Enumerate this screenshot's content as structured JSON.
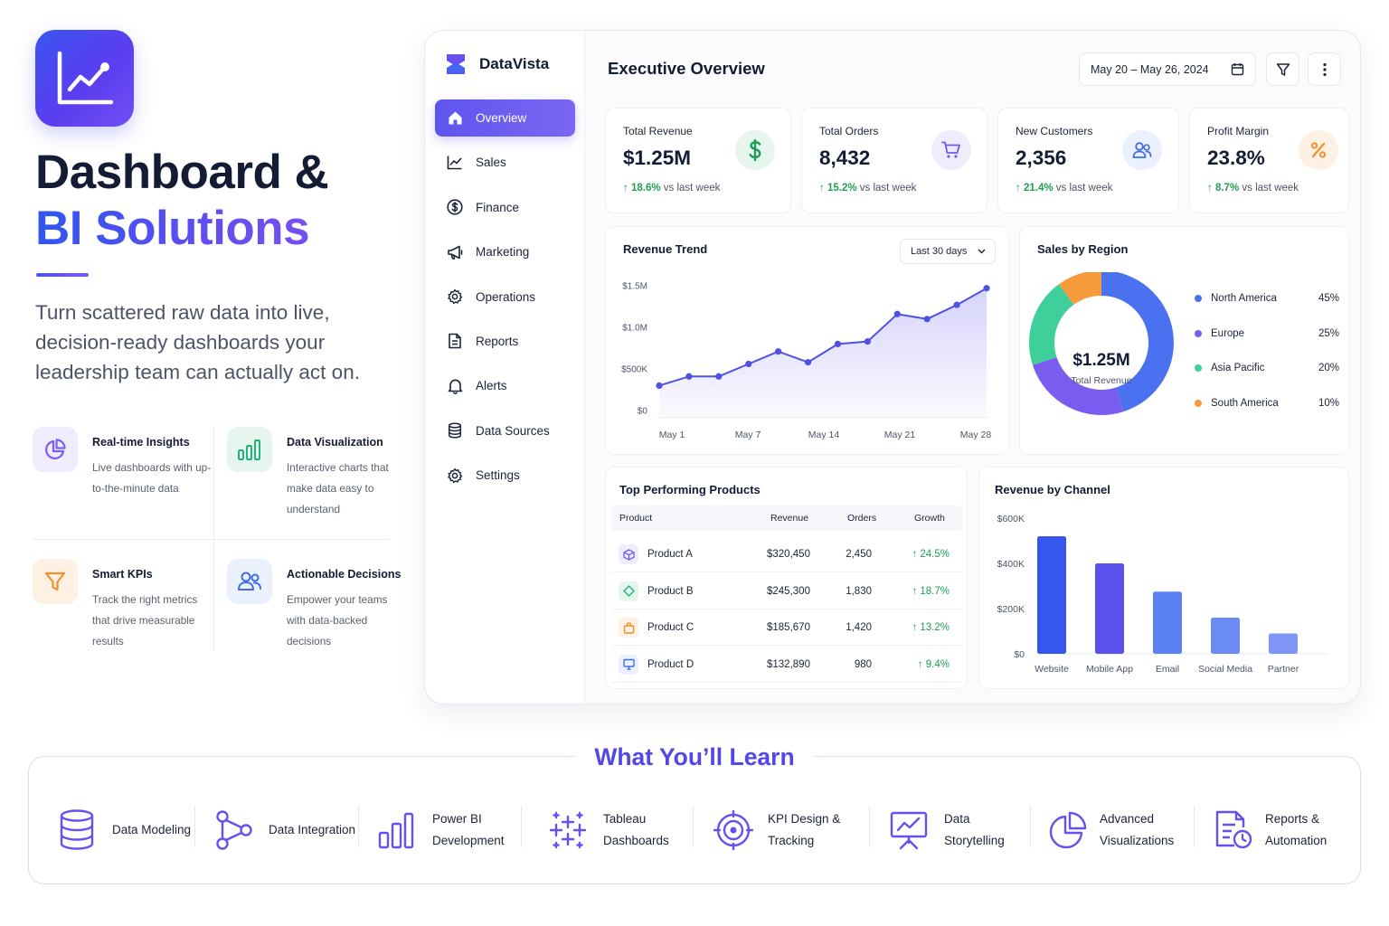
{
  "hero": {
    "title_line1": "Dashboard &",
    "title_line2": "BI Solutions",
    "description": "Turn scattered raw data into live, decision-ready dashboards your leadership team can actually act on.",
    "features": [
      {
        "title": "Real-time Insights",
        "text": "Live dashboards with up-to-the-minute data",
        "icon": "pie-chart-icon"
      },
      {
        "title": "Data Visualization",
        "text": "Interactive charts that make data easy to understand",
        "icon": "bar-chart-icon"
      },
      {
        "title": "Smart KPIs",
        "text": "Track the right metrics that drive measurable results",
        "icon": "filter-icon"
      },
      {
        "title": "Actionable Decisions",
        "text": "Empower your teams with data-backed decisions",
        "icon": "users-icon"
      }
    ]
  },
  "app": {
    "brand": "DataVista",
    "nav": [
      {
        "label": "Overview",
        "icon": "home-icon",
        "active": true
      },
      {
        "label": "Sales",
        "icon": "line-chart-icon"
      },
      {
        "label": "Finance",
        "icon": "dollar-icon"
      },
      {
        "label": "Marketing",
        "icon": "megaphone-icon"
      },
      {
        "label": "Operations",
        "icon": "gear-icon"
      },
      {
        "label": "Reports",
        "icon": "document-icon"
      },
      {
        "label": "Alerts",
        "icon": "bell-icon"
      },
      {
        "label": "Data Sources",
        "icon": "database-icon"
      },
      {
        "label": "Settings",
        "icon": "settings-icon"
      }
    ],
    "page_title": "Executive Overview",
    "date_range": "May 20 – May 26, 2024",
    "kpis": [
      {
        "label": "Total Revenue",
        "value": "$1.25M",
        "delta": "18.6%",
        "delta_suffix": "vs last week",
        "icon": "dollar-icon",
        "color": "#1f9d55",
        "bg": "#e6f6ee"
      },
      {
        "label": "Total Orders",
        "value": "8,432",
        "delta": "15.2%",
        "delta_suffix": "vs last week",
        "icon": "cart-icon",
        "color": "#6b5cf0",
        "bg": "#efedfd"
      },
      {
        "label": "New Customers",
        "value": "2,356",
        "delta": "21.4%",
        "delta_suffix": "vs last week",
        "icon": "users-icon",
        "color": "#3f6ee8",
        "bg": "#eaf0fd"
      },
      {
        "label": "Profit Margin",
        "value": "23.8%",
        "delta": "8.7%",
        "delta_suffix": "vs last week",
        "icon": "percent-icon",
        "color": "#f0902a",
        "bg": "#fdf1e3"
      }
    ],
    "revenue_trend": {
      "title": "Revenue Trend",
      "range": "Last 30 days"
    },
    "sales_region": {
      "title": "Sales by Region",
      "center_value": "$1.25M",
      "center_label": "Total Revenue"
    },
    "products": {
      "title": "Top Performing Products",
      "columns": [
        "Product",
        "Revenue",
        "Orders",
        "Growth"
      ],
      "rows": [
        {
          "name": "Product A",
          "revenue": "$320,450",
          "orders": "2,450",
          "growth": "24.5%",
          "icon": "cube-icon",
          "color": "#6b5cf0",
          "bg": "#efedfd"
        },
        {
          "name": "Product B",
          "revenue": "$245,300",
          "orders": "1,830",
          "growth": "18.7%",
          "icon": "diamond-icon",
          "color": "#1fb27a",
          "bg": "#e6f6ee"
        },
        {
          "name": "Product C",
          "revenue": "$185,670",
          "orders": "1,420",
          "growth": "13.2%",
          "icon": "bag-icon",
          "color": "#f0902a",
          "bg": "#fdf1e3"
        },
        {
          "name": "Product D",
          "revenue": "$132,890",
          "orders": "980",
          "growth": "9.4%",
          "icon": "monitor-icon",
          "color": "#3f6ee8",
          "bg": "#eaf0fd"
        }
      ]
    },
    "channel": {
      "title": "Revenue by Channel"
    }
  },
  "learn": {
    "title": "What You’ll Learn",
    "items": [
      {
        "label": "Data Modeling",
        "icon": "database-icon"
      },
      {
        "label": "Data Integration",
        "icon": "nodes-icon"
      },
      {
        "label": "Power BI Development",
        "icon": "bar-chart-icon"
      },
      {
        "label": "Tableau Dashboards",
        "icon": "sparkle-grid-icon"
      },
      {
        "label": "KPI Design & Tracking",
        "icon": "target-icon"
      },
      {
        "label": "Data Storytelling",
        "icon": "presentation-icon"
      },
      {
        "label": "Advanced Visualizations",
        "icon": "pie-chart-icon"
      },
      {
        "label": "Reports & Automation",
        "icon": "report-clock-icon"
      }
    ]
  },
  "chart_data": [
    {
      "type": "line",
      "title": "Revenue Trend",
      "x_tick_labels": [
        "May 1",
        "May 7",
        "May 14",
        "May 21",
        "May 28"
      ],
      "y_tick_labels": [
        "$0",
        "$500K",
        "$1.0M",
        "$1.5M"
      ],
      "ylim": [
        0,
        1500000
      ],
      "series": [
        {
          "values": [
            300000,
            410000,
            410000,
            560000,
            710000,
            580000,
            800000,
            830000,
            1160000,
            1100000,
            1270000,
            1470000
          ]
        }
      ],
      "color": "#4f52e0"
    },
    {
      "type": "pie",
      "title": "Sales by Region",
      "labels": [
        "North America",
        "Europe",
        "Asia Pacific",
        "South America"
      ],
      "values": [
        45,
        25,
        20,
        10
      ],
      "value_labels": [
        "45%",
        "25%",
        "20%",
        "10%"
      ],
      "colors": [
        "#4a72f0",
        "#7b5cf0",
        "#3fcf9a",
        "#f59b3c"
      ],
      "legend": "right"
    },
    {
      "type": "bar",
      "title": "Revenue by Channel",
      "categories": [
        "Website",
        "Mobile App",
        "Email",
        "Social Media",
        "Partner"
      ],
      "values": [
        520000,
        400000,
        275000,
        160000,
        90000
      ],
      "y_tick_labels": [
        "$0",
        "$200K",
        "$400K",
        "$600K"
      ],
      "ylim": [
        0,
        600000
      ],
      "colors": [
        "#3557ee",
        "#5a50ee",
        "#5a80f3",
        "#6a8cf4",
        "#7f95f6"
      ]
    }
  ]
}
